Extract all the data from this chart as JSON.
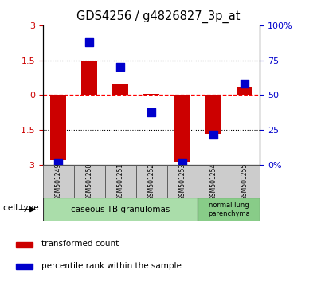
{
  "title": "GDS4256 / g4826827_3p_at",
  "samples": [
    "GSM501249",
    "GSM501250",
    "GSM501251",
    "GSM501252",
    "GSM501253",
    "GSM501254",
    "GSM501255"
  ],
  "transformed_counts": [
    -2.8,
    1.5,
    0.5,
    0.05,
    -2.85,
    -1.65,
    0.35
  ],
  "percentile_ranks": [
    2,
    88,
    70,
    38,
    2,
    22,
    58
  ],
  "ylim_left": [
    -3,
    3
  ],
  "ylim_right": [
    0,
    100
  ],
  "yticks_left": [
    -3,
    -1.5,
    0,
    1.5,
    3
  ],
  "yticks_right": [
    0,
    25,
    50,
    75,
    100
  ],
  "yticklabels_left": [
    "-3",
    "-1.5",
    "0",
    "1.5",
    "3"
  ],
  "yticklabels_right": [
    "0%",
    "25",
    "50",
    "75",
    "100%"
  ],
  "bar_color": "#cc0000",
  "dot_color": "#0000cc",
  "ct1_label": "caseous TB granulomas",
  "ct1_color": "#aaddaa",
  "ct1_count": 5,
  "ct2_label": "normal lung\nparenchyma",
  "ct2_color": "#88cc88",
  "ct2_count": 2,
  "legend_bar_label": "transformed count",
  "legend_dot_label": "percentile rank within the sample",
  "cell_type_label": "cell type",
  "tick_label_color_left": "#cc0000",
  "tick_label_color_right": "#0000cc",
  "dot_size": 45,
  "bar_width": 0.5
}
